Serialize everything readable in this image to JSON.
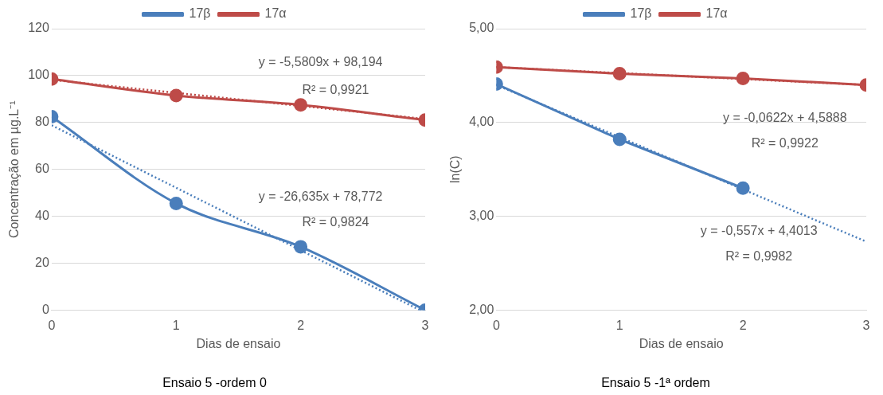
{
  "chart_data": [
    {
      "type": "line",
      "title": "Ensaio 5 -ordem 0",
      "xlabel": "Dias de ensaio",
      "ylabel": "Concentração em µg.L⁻¹",
      "xlim": [
        0,
        3
      ],
      "xticks": [
        0,
        1,
        2,
        3
      ],
      "ylim": [
        0,
        120
      ],
      "yticks": [
        0,
        20,
        40,
        60,
        80,
        100,
        120
      ],
      "grid": "y",
      "legend": "top",
      "marker": "circle",
      "x": [
        0,
        1,
        2,
        3
      ],
      "series": [
        {
          "name": "17β",
          "color": "#4a7ebb",
          "values": [
            82.5,
            45.5,
            27,
            0
          ]
        },
        {
          "name": "17α",
          "color": "#be4b48",
          "values": [
            98.5,
            91.5,
            87.5,
            81
          ]
        },
        {
          "color": "#4a7ebb",
          "x": [
            0,
            2.95
          ],
          "values": [
            78.8,
            0.2
          ],
          "line_style": "dotted",
          "marker": "none"
        },
        {
          "color": "#be4b48",
          "x": [
            0,
            3
          ],
          "values": [
            98.2,
            81.5
          ],
          "line_style": "dotted",
          "marker": "none"
        }
      ],
      "annotations": [
        "y = -5,5809x + 98,194",
        "R² = 0,9921",
        "y = -26,635x + 78,772",
        "R² = 0,9824"
      ]
    },
    {
      "type": "line",
      "title": "Ensaio 5 -1ª ordem",
      "xlabel": "Dias de ensaio",
      "ylabel": "ln(C)",
      "xlim": [
        0,
        3
      ],
      "xticks": [
        0,
        1,
        2,
        3
      ],
      "ylim": [
        2,
        5
      ],
      "yticks": [
        {
          "value": 2,
          "label": "2,00"
        },
        {
          "value": 3,
          "label": "3,00"
        },
        {
          "value": 4,
          "label": "4,00"
        },
        {
          "value": 5,
          "label": "5,00"
        }
      ],
      "grid": "y",
      "legend": "top",
      "marker": "circle",
      "x": [
        0,
        1,
        2,
        3
      ],
      "series": [
        {
          "name": "17β",
          "color": "#4a7ebb",
          "values": [
            4.41,
            3.82,
            3.3,
            null
          ]
        },
        {
          "name": "17α",
          "color": "#be4b48",
          "values": [
            4.59,
            4.52,
            4.47,
            4.4
          ]
        },
        {
          "color": "#4a7ebb",
          "x": [
            0,
            3
          ],
          "values": [
            4.4,
            2.73
          ],
          "line_style": "dotted",
          "marker": "none"
        },
        {
          "color": "#be4b48",
          "x": [
            0,
            3
          ],
          "values": [
            4.59,
            4.4
          ],
          "line_style": "dotted",
          "marker": "none"
        }
      ],
      "annotations": [
        "y = -0,0622x + 4,5888",
        "R² = 0,9922",
        "y = -0,557x + 4,4013",
        "R² = 0,9982"
      ]
    }
  ]
}
